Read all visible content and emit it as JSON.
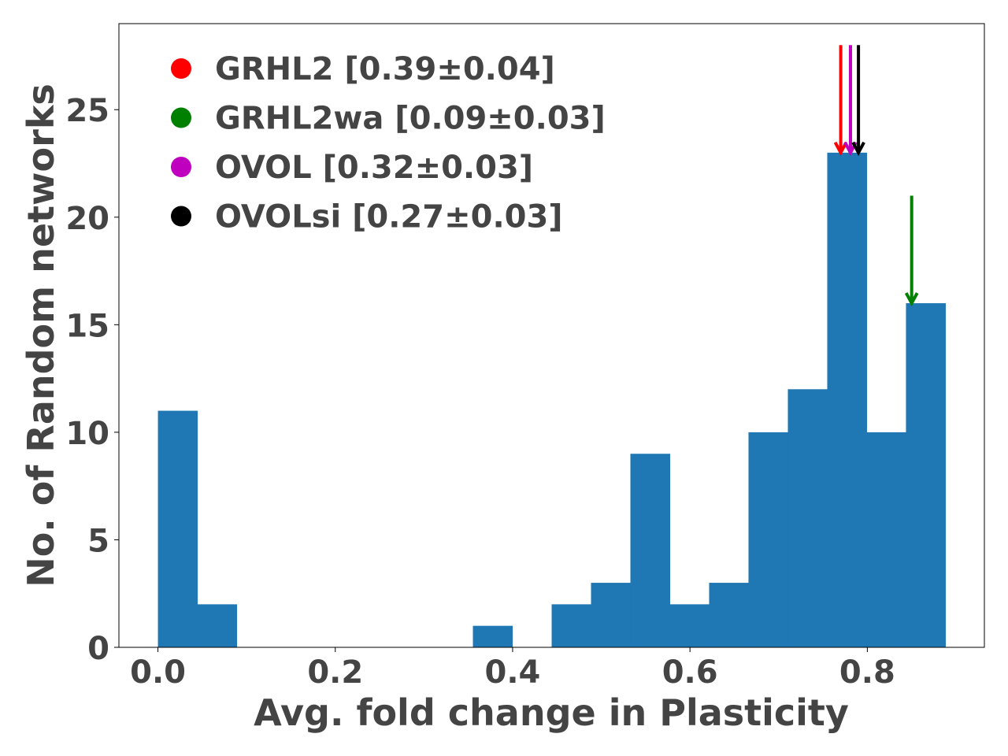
{
  "chart_data": {
    "type": "bar",
    "title": "",
    "xlabel": "Avg. fold change in Plasticity",
    "ylabel": "No. of Random networks",
    "xlim": [
      -0.044,
      0.932
    ],
    "ylim": [
      0,
      29
    ],
    "xticks": [
      0.0,
      0.2,
      0.4,
      0.6,
      0.8
    ],
    "xtick_labels": [
      "0.0",
      "0.2",
      "0.4",
      "0.6",
      "0.8"
    ],
    "yticks": [
      0,
      5,
      10,
      15,
      20,
      25
    ],
    "ytick_labels": [
      "0",
      "5",
      "10",
      "15",
      "20",
      "25"
    ],
    "bins": {
      "edges": [
        0.0,
        0.0444,
        0.0888,
        0.1332,
        0.1776,
        0.222,
        0.2664,
        0.3108,
        0.3552,
        0.3996,
        0.444,
        0.4884,
        0.5328,
        0.5772,
        0.6216,
        0.666,
        0.7104,
        0.7548,
        0.7992,
        0.8436,
        0.888
      ],
      "counts": [
        11,
        2,
        0,
        0,
        0,
        0,
        0,
        0,
        1,
        0,
        2,
        3,
        9,
        2,
        3,
        10,
        12,
        23,
        10,
        16
      ]
    },
    "bar_color": "#1f77b4",
    "grid": false,
    "legend_placement": "top-left",
    "markers": [
      {
        "name": "GRHL2",
        "label": "GRHL2 [0.39±0.04]",
        "color": "#ff0000",
        "x": 0.77,
        "y_top": 28,
        "y_tip": 23
      },
      {
        "name": "GRHL2wa",
        "label": "GRHL2wa [0.09±0.03]",
        "color": "#008000",
        "x": 0.85,
        "y_top": 21,
        "y_tip": 16
      },
      {
        "name": "OVOL",
        "label": "OVOL [0.32±0.03]",
        "color": "#bf00bf",
        "x": 0.781,
        "y_top": 28,
        "y_tip": 23
      },
      {
        "name": "OVOLsi",
        "label": "OVOLsi [0.27±0.03]",
        "color": "#000000",
        "x": 0.79,
        "y_top": 28,
        "y_tip": 23
      }
    ]
  }
}
